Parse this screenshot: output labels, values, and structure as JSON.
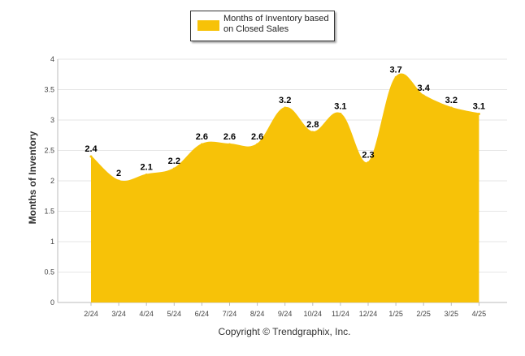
{
  "chart_data": {
    "type": "area",
    "categories": [
      "2/24",
      "3/24",
      "4/24",
      "5/24",
      "6/24",
      "7/24",
      "8/24",
      "9/24",
      "10/24",
      "11/24",
      "12/24",
      "1/25",
      "2/25",
      "3/25",
      "4/25"
    ],
    "series": [
      {
        "name": "Months of Inventory based on Closed Sales",
        "values": [
          2.4,
          2.0,
          2.1,
          2.2,
          2.6,
          2.6,
          2.6,
          3.2,
          2.8,
          3.1,
          2.3,
          3.7,
          3.4,
          3.2,
          3.1
        ],
        "labels": [
          "2.4",
          "2",
          "2.1",
          "2.2",
          "2.6",
          "2.6",
          "2.6",
          "3.2",
          "2.8",
          "3.1",
          "2.3",
          "3.7",
          "3.4",
          "3.2",
          "3.1"
        ],
        "color": "#F7C208"
      }
    ],
    "ylabel": "Months of Inventory",
    "xlabel": "",
    "ylim": [
      0,
      4
    ],
    "yticks": [
      "0",
      "0.5",
      "1",
      "1.5",
      "2",
      "2.5",
      "3",
      "3.5",
      "4"
    ],
    "grid": true,
    "legend_position": "top-center",
    "smooth": true
  },
  "footer": {
    "copyright": "Copyright © Trendgraphix, Inc."
  }
}
